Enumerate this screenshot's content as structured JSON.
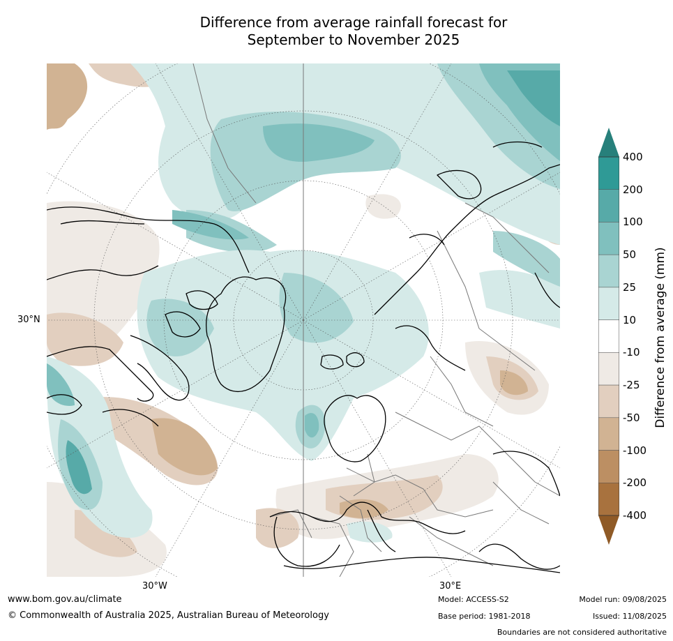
{
  "title": {
    "line1": "Difference from average rainfall forecast for",
    "line2": "September to November 2025"
  },
  "map": {
    "projection": "north-polar-stereographic",
    "lat_label": "30°N",
    "lon_labels": {
      "west": "30°W",
      "east": "30°E"
    }
  },
  "colorbar": {
    "title": "Difference from average (mm)",
    "ticks": [
      "400",
      "200",
      "100",
      "50",
      "25",
      "10",
      "-10",
      "-25",
      "-50",
      "-100",
      "-200",
      "-400"
    ],
    "colors": {
      "over": "#27807b",
      "bins_top_to_bottom": [
        "#2f9a96",
        "#57aaa8",
        "#80c0be",
        "#a9d4d2",
        "#d5eae8",
        "#ffffff",
        "#efeae5",
        "#e2cfbf",
        "#d1b393",
        "#bc8f63",
        "#a8723e"
      ],
      "under": "#8f5a26"
    }
  },
  "footer": {
    "website": "www.bom.gov.au/climate",
    "copyright": "© Commonwealth of Australia 2025, Australian Bureau of Meteorology",
    "model": "Model: ACCESS-S2",
    "base_period": "Base period: 1981-2018",
    "model_run": "Model run: 09/08/2025",
    "issued": "Issued: 11/08/2025",
    "disclaimer": "Boundaries are not considered authoritative"
  }
}
